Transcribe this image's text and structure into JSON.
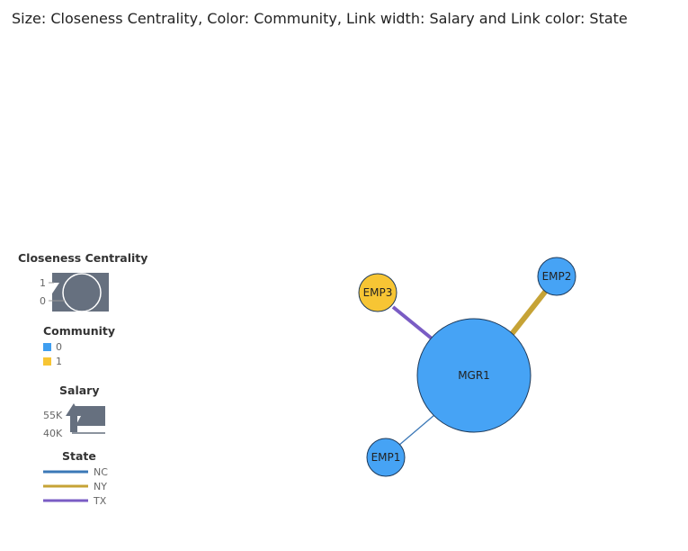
{
  "title": "Size: Closeness Centrality, Color: Community, Link width: Salary and Link color: State",
  "legend": {
    "size": {
      "title": "Closeness Centrality",
      "max_label": "1",
      "min_label": "0"
    },
    "community": {
      "title": "Community",
      "items": [
        {
          "label": "0",
          "color": "#3f9ef0"
        },
        {
          "label": "1",
          "color": "#f7c534"
        }
      ]
    },
    "link_width": {
      "title": "Salary",
      "max_label": "55K",
      "min_label": "40K"
    },
    "link_color": {
      "title": "State",
      "items": [
        {
          "label": "NC",
          "color": "#3b78b7"
        },
        {
          "label": "NY",
          "color": "#c6a336"
        },
        {
          "label": "TX",
          "color": "#7a5cc4"
        }
      ]
    }
  },
  "graph": {
    "nodes": [
      {
        "id": "MGR1",
        "label": "MGR1",
        "community": "0",
        "color": "#46a3f5"
      },
      {
        "id": "EMP1",
        "label": "EMP1",
        "community": "0",
        "color": "#46a3f5"
      },
      {
        "id": "EMP2",
        "label": "EMP2",
        "community": "0",
        "color": "#46a3f5"
      },
      {
        "id": "EMP3",
        "label": "EMP3",
        "community": "1",
        "color": "#f7c534"
      }
    ],
    "links": [
      {
        "source": "MGR1",
        "target": "EMP1",
        "state": "NC"
      },
      {
        "source": "MGR1",
        "target": "EMP2",
        "state": "NY"
      },
      {
        "source": "MGR1",
        "target": "EMP3",
        "state": "TX"
      }
    ]
  }
}
